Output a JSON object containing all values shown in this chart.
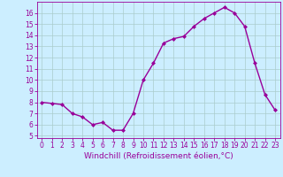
{
  "x": [
    0,
    1,
    2,
    3,
    4,
    5,
    6,
    7,
    8,
    9,
    10,
    11,
    12,
    13,
    14,
    15,
    16,
    17,
    18,
    19,
    20,
    21,
    22,
    23
  ],
  "y": [
    8.0,
    7.9,
    7.8,
    7.0,
    6.7,
    6.0,
    6.2,
    5.5,
    5.5,
    7.0,
    10.0,
    11.5,
    13.3,
    13.7,
    13.9,
    14.8,
    15.5,
    16.0,
    16.5,
    16.0,
    14.8,
    11.5,
    8.7,
    7.3
  ],
  "line_color": "#990099",
  "marker": "D",
  "marker_size": 2.0,
  "line_width": 1.0,
  "bg_color": "#cceeff",
  "grid_color": "#aacccc",
  "xlabel": "Windchill (Refroidissement éolien,°C)",
  "xlabel_fontsize": 6.5,
  "tick_fontsize": 5.5,
  "ylim": [
    4.8,
    17.0
  ],
  "yticks": [
    5,
    6,
    7,
    8,
    9,
    10,
    11,
    12,
    13,
    14,
    15,
    16
  ],
  "xlim": [
    -0.5,
    23.5
  ],
  "xticks": [
    0,
    1,
    2,
    3,
    4,
    5,
    6,
    7,
    8,
    9,
    10,
    11,
    12,
    13,
    14,
    15,
    16,
    17,
    18,
    19,
    20,
    21,
    22,
    23
  ]
}
